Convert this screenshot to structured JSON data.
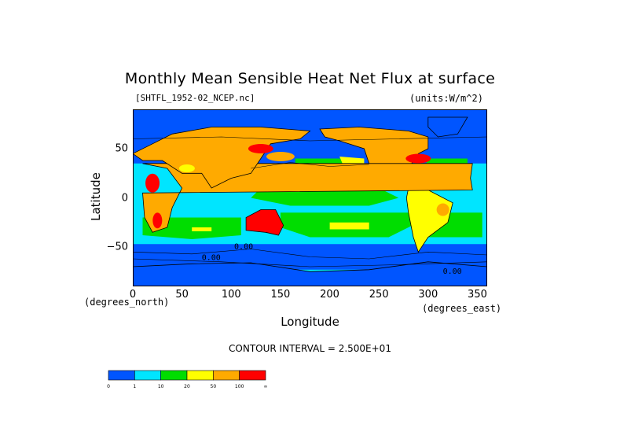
{
  "title": "Monthly Mean Sensible Heat Net Flux at surface",
  "file_label": "[SHTFL_1952-02_NCEP.nc]",
  "units_label": "(units:W/m^2)",
  "colors": {
    "black": "#000000",
    "land_outline": "#000000",
    "bg": "#ffffff"
  },
  "chart_data": {
    "type": "heatmap",
    "title": "Monthly Mean Sensible Heat Net Flux at surface",
    "xlabel": "Longitude",
    "ylabel": "Latitude",
    "xlim": [
      0,
      360
    ],
    "ylim": [
      -90,
      90
    ],
    "x_ticks": [
      "0",
      "50",
      "100",
      "150",
      "200",
      "250",
      "300",
      "350"
    ],
    "y_ticks": [
      "50",
      "0",
      "-50"
    ],
    "x_unit_label": "(degrees_east)",
    "y_unit_label": "(degrees_north)",
    "contour_interval": "CONTOUR INTERVAL = 2.500E+01",
    "contour_labels": [
      "0.00",
      "0.00",
      "0.00"
    ],
    "colorbar": {
      "labels": [
        "0",
        "1",
        "10",
        "20",
        "50",
        "100",
        "∞"
      ],
      "colors": [
        "#0055ff",
        "#00e5ff",
        "#00dd00",
        "#ffff00",
        "#ffaa00",
        "#ff0000"
      ]
    }
  }
}
